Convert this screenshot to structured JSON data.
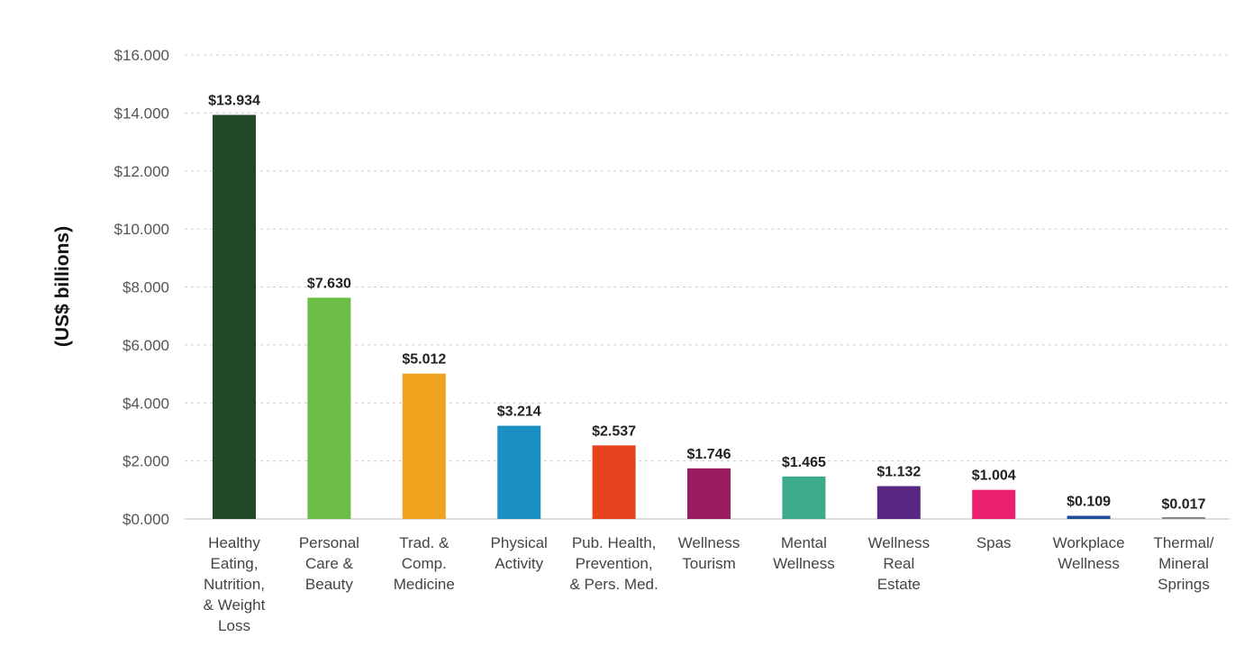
{
  "chart_data": {
    "type": "bar",
    "title": "",
    "xlabel": "",
    "ylabel": "(US$ billions)",
    "ylim": [
      0,
      16
    ],
    "yticks": [
      0,
      2,
      4,
      6,
      8,
      10,
      12,
      14,
      16
    ],
    "ytick_labels": [
      "$0.000",
      "$2.000",
      "$4.000",
      "$6.000",
      "$8.000",
      "$10.000",
      "$12.000",
      "$14.000",
      "$16.000"
    ],
    "grid": true,
    "categories": [
      [
        "Healthy",
        "Eating,",
        "Nutrition,",
        "& Weight",
        "Loss"
      ],
      [
        "Personal",
        "Care &",
        "Beauty"
      ],
      [
        "Trad. &",
        "Comp.",
        "Medicine"
      ],
      [
        "Physical",
        "Activity"
      ],
      [
        "Pub. Health,",
        "Prevention,",
        "& Pers. Med."
      ],
      [
        "Wellness",
        "Tourism"
      ],
      [
        "Mental",
        "Wellness"
      ],
      [
        "Wellness",
        "Real",
        "Estate"
      ],
      [
        "Spas"
      ],
      [
        "Workplace",
        "Wellness"
      ],
      [
        "Thermal/",
        "Mineral",
        "Springs"
      ]
    ],
    "values": [
      13.934,
      7.63,
      5.012,
      3.214,
      2.537,
      1.746,
      1.465,
      1.132,
      1.004,
      0.109,
      0.017
    ],
    "value_labels": [
      "$13.934",
      "$7.630",
      "$5.012",
      "$3.214",
      "$2.537",
      "$1.746",
      "$1.465",
      "$1.132",
      "$1.004",
      "$0.109",
      "$0.017"
    ],
    "colors": [
      "#1f4a25",
      "#6cbd45",
      "#f0a31e",
      "#1a8fc4",
      "#e8431f",
      "#9c1d5f",
      "#3bab8c",
      "#5b2784",
      "#ec1f6e",
      "#1e4d99",
      "#8a8a8a"
    ]
  }
}
